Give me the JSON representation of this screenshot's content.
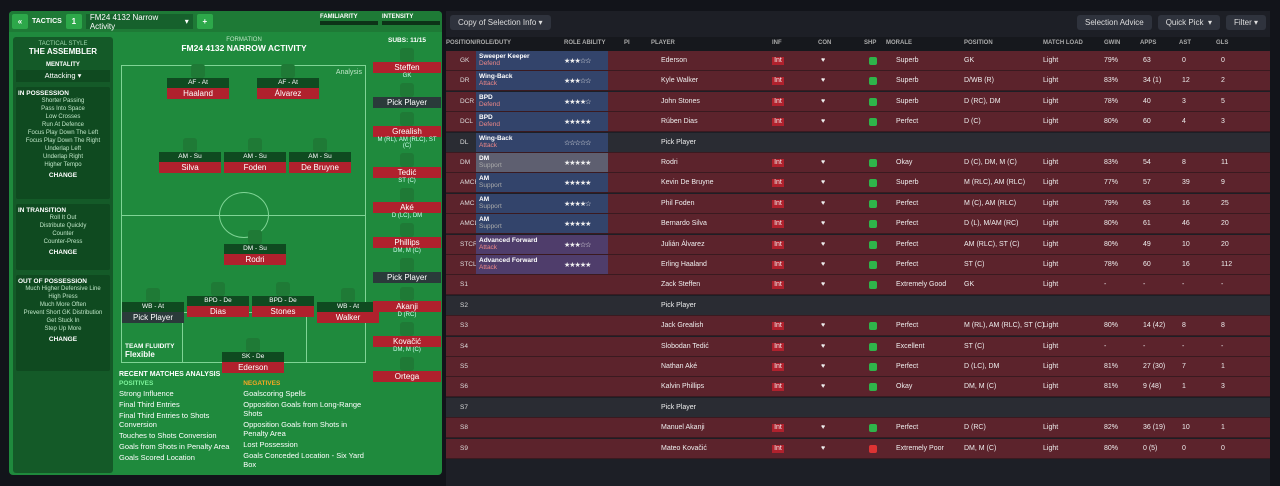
{
  "left": {
    "tactics_label": "TACTICS",
    "slot": "1",
    "tactic_name": "FM24 4132 Narrow Activity",
    "familiarity_label": "FAMILIARITY",
    "intensity_label": "INTENSITY",
    "style_label": "TACTICAL STYLE",
    "style_name": "THE ASSEMBLER",
    "mentality_label": "MENTALITY",
    "mentality": "Attacking",
    "in_possession": {
      "title": "IN POSSESSION",
      "items": [
        "Shorter Passing",
        "Pass Into Space",
        "Low Crosses",
        "Run At Defence",
        "Focus Play Down The Left",
        "Focus Play Down The Right",
        "Underlap Left",
        "Underlap Right",
        "Higher Tempo"
      ]
    },
    "in_transition": {
      "title": "IN TRANSITION",
      "items": [
        "Roll It Out",
        "Distribute Quickly",
        "Counter",
        "Counter-Press"
      ]
    },
    "out_of_possession": {
      "title": "OUT OF POSSESSION",
      "items": [
        "Much Higher Defensive Line",
        "High Press",
        "Much More Often",
        "Prevent Short GK Distribution",
        "Get Stuck In",
        "Step Up More"
      ]
    },
    "change": "CHANGE",
    "formation_label": "FORMATION",
    "formation_name": "FM24 4132 NARROW ACTIVITY",
    "subs_label": "SUBS:",
    "subs_count": "11/15",
    "analysis_toggle": "Analysis",
    "fluidity_label": "TEAM FLUIDITY",
    "fluidity": "Flexible",
    "recent_label": "RECENT MATCHES ANALYSIS",
    "positives_label": "POSITIVES",
    "positives": [
      "Strong Influence",
      "Final Third Entries",
      "Final Third Entries to Shots Conversion",
      "Touches to Shots Conversion",
      "Goals from Shots in Penalty Area",
      "Goals Scored Location"
    ],
    "negatives_label": "NEGATIVES",
    "negatives": [
      "Goalscoring Spells",
      "Opposition Goals from Long-Range Shots",
      "Opposition Goals from Shots in Penalty Area",
      "Lost Possession",
      "Goals Conceded Location - Six Yard Box"
    ],
    "players": [
      {
        "role": "AF - At",
        "name": "Haaland"
      },
      {
        "role": "AF - At",
        "name": "Álvarez"
      },
      {
        "role": "AM - Su",
        "name": "Silva"
      },
      {
        "role": "AM - Su",
        "name": "Foden"
      },
      {
        "role": "AM - Su",
        "name": "De Bruyne"
      },
      {
        "role": "DM - Su",
        "name": "Rodri"
      },
      {
        "role": "WB - At",
        "name": "Pick Player"
      },
      {
        "role": "BPD - De",
        "name": "Dias"
      },
      {
        "role": "BPD - De",
        "name": "Stones"
      },
      {
        "role": "WB - At",
        "name": "Walker"
      },
      {
        "role": "SK - De",
        "name": "Ederson"
      }
    ],
    "subs": [
      {
        "name": "Steffen",
        "pos": "GK"
      },
      {
        "name": "Pick Player",
        "pos": ""
      },
      {
        "name": "Grealish",
        "pos": "M (RL), AM (RLC), ST (C)"
      },
      {
        "name": "Tedić",
        "pos": "ST (C)"
      },
      {
        "name": "Aké",
        "pos": "D (LC), DM"
      },
      {
        "name": "Phillips",
        "pos": "DM, M (C)"
      },
      {
        "name": "Pick Player",
        "pos": ""
      },
      {
        "name": "Akanji",
        "pos": "D (RC)"
      },
      {
        "name": "Kovačić",
        "pos": "DM, M (C)"
      },
      {
        "name": "Ortega",
        "pos": ""
      }
    ]
  },
  "right": {
    "copy_button": "Copy of Selection Info",
    "advice_button": "Selection Advice",
    "quickpick_button": "Quick Pick",
    "filter_button": "Filter",
    "headers": [
      "POSITION/ROLE/DUTY",
      "ROLE ABILITY",
      "PI",
      "PLAYER",
      "INF",
      "CON",
      "SHP",
      "MORALE",
      "POSITION",
      "MATCH LOAD",
      "GWIN",
      "APPS",
      "AST",
      "GLS"
    ],
    "rows": [
      {
        "pos": "GK",
        "role": "Sweeper Keeper",
        "duty": "Defend",
        "stars": "★★★☆☆",
        "player": "Ederson",
        "morale": "Superb",
        "position": "GK",
        "load": "Light",
        "gwin": "79%",
        "apps": "63",
        "ast": "0",
        "gls": "0"
      },
      {
        "pos": "DR",
        "role": "Wing-Back",
        "duty": "Attack",
        "stars": "★★★☆☆",
        "player": "Kyle Walker",
        "morale": "Superb",
        "position": "D/WB (R)",
        "load": "Light",
        "gwin": "83%",
        "apps": "34 (1)",
        "ast": "12",
        "gls": "2"
      },
      {
        "pos": "DCR",
        "role": "BPD",
        "duty": "Defend",
        "stars": "★★★★☆",
        "player": "John Stones",
        "morale": "Superb",
        "position": "D (RC), DM",
        "load": "Light",
        "gwin": "78%",
        "apps": "40",
        "ast": "3",
        "gls": "5"
      },
      {
        "pos": "DCL",
        "role": "BPD",
        "duty": "Defend",
        "stars": "★★★★★",
        "player": "Rúben Dias",
        "morale": "Perfect",
        "position": "D (C)",
        "load": "Light",
        "gwin": "80%",
        "apps": "60",
        "ast": "4",
        "gls": "3"
      },
      {
        "pos": "DL",
        "role": "Wing-Back",
        "duty": "Attack",
        "stars": "☆☆☆☆☆",
        "player": "Pick Player",
        "morale": "",
        "position": "",
        "load": "",
        "gwin": "",
        "apps": "",
        "ast": "",
        "gls": ""
      },
      {
        "pos": "DM",
        "role": "DM",
        "duty": "Support",
        "stars": "★★★★★",
        "player": "Rodri",
        "morale": "Okay",
        "position": "D (C), DM, M (C)",
        "load": "Light",
        "gwin": "83%",
        "apps": "54",
        "ast": "8",
        "gls": "11"
      },
      {
        "pos": "AMCR",
        "role": "AM",
        "duty": "Support",
        "stars": "★★★★★",
        "player": "Kevin De Bruyne",
        "morale": "Superb",
        "position": "M (RLC), AM (RLC)",
        "load": "Light",
        "gwin": "77%",
        "apps": "57",
        "ast": "39",
        "gls": "9"
      },
      {
        "pos": "AMC",
        "role": "AM",
        "duty": "Support",
        "stars": "★★★★☆",
        "player": "Phil Foden",
        "morale": "Perfect",
        "position": "M (C), AM (RLC)",
        "load": "Light",
        "gwin": "79%",
        "apps": "63",
        "ast": "16",
        "gls": "25"
      },
      {
        "pos": "AMCL",
        "role": "AM",
        "duty": "Support",
        "stars": "★★★★★",
        "player": "Bernardo Silva",
        "morale": "Perfect",
        "position": "D (L), M/AM (RC)",
        "load": "Light",
        "gwin": "80%",
        "apps": "61",
        "ast": "46",
        "gls": "20"
      },
      {
        "pos": "STCR",
        "role": "Advanced Forward",
        "duty": "Attack",
        "stars": "★★★☆☆",
        "player": "Julián Álvarez",
        "morale": "Perfect",
        "position": "AM (RLC), ST (C)",
        "load": "Light",
        "gwin": "80%",
        "apps": "49",
        "ast": "10",
        "gls": "20"
      },
      {
        "pos": "STCL",
        "role": "Advanced Forward",
        "duty": "Attack",
        "stars": "★★★★★",
        "player": "Erling Haaland",
        "morale": "Perfect",
        "position": "ST (C)",
        "load": "Light",
        "gwin": "78%",
        "apps": "60",
        "ast": "16",
        "gls": "112"
      },
      {
        "pos": "S1",
        "role": "",
        "duty": "",
        "stars": "",
        "player": "Zack Steffen",
        "morale": "Extremely Good",
        "position": "GK",
        "load": "Light",
        "gwin": "-",
        "apps": "-",
        "ast": "-",
        "gls": "-"
      },
      {
        "pos": "S2",
        "role": "",
        "duty": "",
        "stars": "",
        "player": "Pick Player",
        "morale": "",
        "position": "",
        "load": "",
        "gwin": "",
        "apps": "",
        "ast": "",
        "gls": ""
      },
      {
        "pos": "S3",
        "role": "",
        "duty": "",
        "stars": "",
        "player": "Jack Grealish",
        "morale": "Perfect",
        "position": "M (RL), AM (RLC), ST (C)",
        "load": "Light",
        "gwin": "80%",
        "apps": "14 (42)",
        "ast": "8",
        "gls": "8"
      },
      {
        "pos": "S4",
        "role": "",
        "duty": "",
        "stars": "",
        "player": "Slobodan Tedić",
        "morale": "Excellent",
        "position": "ST (C)",
        "load": "Light",
        "gwin": "-",
        "apps": "-",
        "ast": "-",
        "gls": "-"
      },
      {
        "pos": "S5",
        "role": "",
        "duty": "",
        "stars": "",
        "player": "Nathan Aké",
        "morale": "Perfect",
        "position": "D (LC), DM",
        "load": "Light",
        "gwin": "81%",
        "apps": "27 (30)",
        "ast": "7",
        "gls": "1"
      },
      {
        "pos": "S6",
        "role": "",
        "duty": "",
        "stars": "",
        "player": "Kalvin Phillips",
        "morale": "Okay",
        "position": "DM, M (C)",
        "load": "Light",
        "gwin": "81%",
        "apps": "9 (48)",
        "ast": "1",
        "gls": "3"
      },
      {
        "pos": "S7",
        "role": "",
        "duty": "",
        "stars": "",
        "player": "Pick Player",
        "morale": "",
        "position": "",
        "load": "",
        "gwin": "",
        "apps": "",
        "ast": "",
        "gls": ""
      },
      {
        "pos": "S8",
        "role": "",
        "duty": "",
        "stars": "",
        "player": "Manuel Akanji",
        "morale": "Perfect",
        "position": "D (RC)",
        "load": "Light",
        "gwin": "82%",
        "apps": "36 (19)",
        "ast": "10",
        "gls": "1"
      },
      {
        "pos": "S9",
        "role": "",
        "duty": "",
        "stars": "",
        "player": "Mateo Kovačić",
        "morale": "Extremely Poor",
        "position": "DM, M (C)",
        "load": "Light",
        "gwin": "80%",
        "apps": "0 (5)",
        "ast": "0",
        "gls": "0"
      }
    ]
  }
}
